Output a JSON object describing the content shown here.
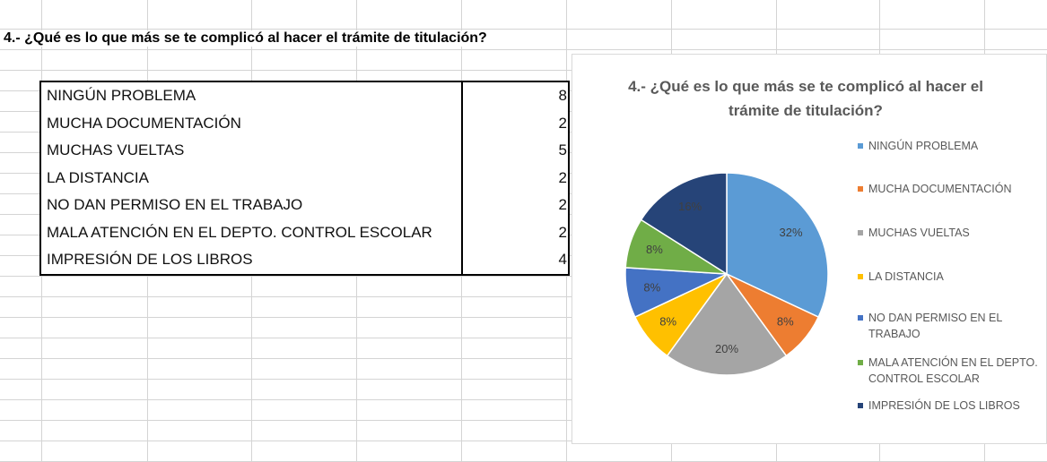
{
  "heading": "4.- ¿Qué es lo que más se te complicó al hacer el trámite de titulación?",
  "table": {
    "rows": [
      [
        "NINGÚN PROBLEMA",
        8
      ],
      [
        "MUCHA DOCUMENTACIÓN",
        2
      ],
      [
        "MUCHAS VUELTAS",
        5
      ],
      [
        "LA DISTANCIA",
        2
      ],
      [
        "NO DAN PERMISO EN EL TRABAJO",
        2
      ],
      [
        "MALA ATENCIÓN EN EL DEPTO. CONTROL ESCOLAR",
        2
      ],
      [
        "IMPRESIÓN DE LOS LIBROS",
        4
      ]
    ]
  },
  "chart_data": {
    "type": "pie",
    "title": "4.- ¿Qué es lo que más se te complicó al hacer el trámite de titulación?",
    "categories": [
      "NINGÚN PROBLEMA",
      "MUCHA DOCUMENTACIÓN",
      "MUCHAS VUELTAS",
      "LA DISTANCIA",
      "NO DAN PERMISO EN EL TRABAJO",
      "MALA ATENCIÓN EN EL DEPTO. CONTROL ESCOLAR",
      "IMPRESIÓN DE LOS LIBROS"
    ],
    "values": [
      32,
      8,
      20,
      8,
      8,
      8,
      16
    ],
    "value_labels": [
      "32%",
      "8%",
      "20%",
      "8%",
      "8%",
      "8%",
      "16%"
    ],
    "colors": [
      "#5b9bd5",
      "#ed7d31",
      "#a5a5a5",
      "#ffc000",
      "#4472c4",
      "#70ad47",
      "#264478"
    ],
    "legend": "right"
  }
}
